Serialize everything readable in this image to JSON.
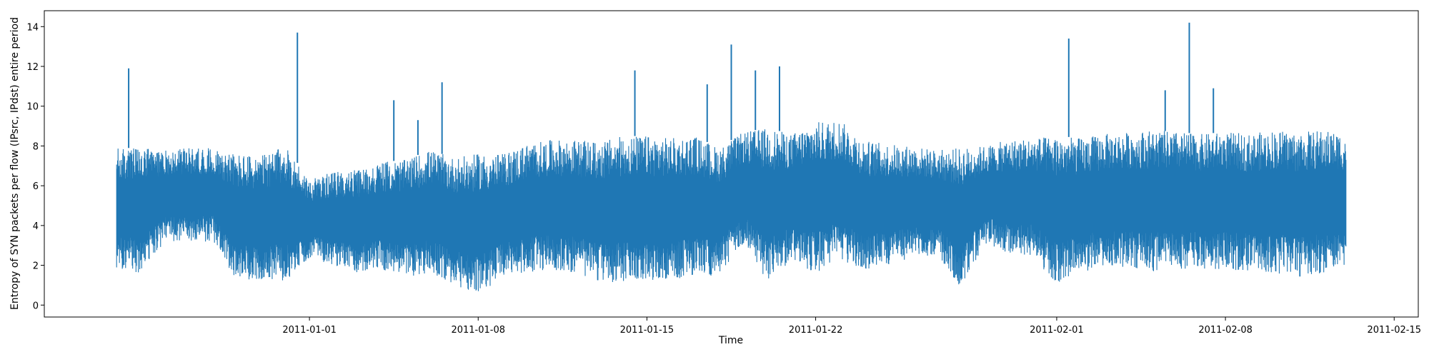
{
  "colors": {
    "series": "#1f77b4",
    "axes": "#000000",
    "background": "#ffffff"
  },
  "chart_data": {
    "type": "line",
    "title": "",
    "xlabel": "Time",
    "ylabel": "Entropy of SYN packets per flow (IPsrc, IPdst) entire period",
    "x_axis_type": "date",
    "xlim": [
      "2010-12-21",
      "2011-02-16"
    ],
    "ylim": [
      -0.6,
      14.8
    ],
    "grid": false,
    "legend": "none",
    "x_ticks": [
      "2011-01-01",
      "2011-01-08",
      "2011-01-15",
      "2011-01-22",
      "2011-02-01",
      "2011-02-08",
      "2011-02-15"
    ],
    "y_ticks": [
      0,
      2,
      4,
      6,
      8,
      10,
      12,
      14
    ],
    "x_tick_labels": [
      "2011-01-01",
      "2011-01-08",
      "2011-01-15",
      "2011-01-22",
      "2011-02-01",
      "2011-02-08",
      "2011-02-15"
    ],
    "y_tick_labels": [
      "0",
      "2",
      "4",
      "6",
      "8",
      "10",
      "12",
      "14"
    ],
    "data_start": "2010-12-24",
    "data_end": "2011-02-13",
    "series": [
      {
        "envelope": {
          "x": [
            "2010-12-24",
            "2010-12-25",
            "2010-12-26",
            "2010-12-27",
            "2010-12-28",
            "2010-12-29",
            "2010-12-30",
            "2010-12-31",
            "2011-01-01",
            "2011-01-02",
            "2011-01-03",
            "2011-01-04",
            "2011-01-05",
            "2011-01-06",
            "2011-01-07",
            "2011-01-08",
            "2011-01-09",
            "2011-01-10",
            "2011-01-11",
            "2011-01-12",
            "2011-01-13",
            "2011-01-14",
            "2011-01-15",
            "2011-01-16",
            "2011-01-17",
            "2011-01-18",
            "2011-01-19",
            "2011-01-20",
            "2011-01-21",
            "2011-01-22",
            "2011-01-23",
            "2011-01-24",
            "2011-01-25",
            "2011-01-26",
            "2011-01-27",
            "2011-01-28",
            "2011-01-29",
            "2011-01-30",
            "2011-01-31",
            "2011-02-01",
            "2011-02-02",
            "2011-02-03",
            "2011-02-04",
            "2011-02-05",
            "2011-02-06",
            "2011-02-07",
            "2011-02-08",
            "2011-02-09",
            "2011-02-10",
            "2011-02-11",
            "2011-02-12",
            "2011-02-13"
          ],
          "low": [
            1.8,
            1.6,
            3.2,
            3.1,
            3.2,
            1.2,
            1.3,
            1.2,
            2.4,
            2.0,
            1.6,
            1.8,
            1.4,
            1.6,
            1.0,
            0.5,
            1.4,
            1.6,
            1.8,
            1.6,
            1.2,
            1.1,
            1.2,
            1.3,
            1.4,
            1.5,
            3.0,
            1.2,
            2.2,
            1.6,
            2.2,
            1.7,
            2.0,
            2.4,
            2.5,
            0.9,
            3.0,
            2.6,
            2.4,
            1.1,
            1.6,
            2.0,
            1.9,
            1.7,
            1.8,
            1.8,
            1.8,
            1.7,
            1.6,
            1.4,
            1.6,
            2.0
          ],
          "high": [
            7.9,
            7.9,
            7.8,
            7.9,
            7.9,
            7.6,
            7.5,
            8.0,
            6.3,
            6.7,
            6.8,
            7.2,
            7.3,
            7.8,
            7.4,
            7.6,
            7.6,
            8.1,
            8.3,
            8.3,
            8.2,
            8.5,
            8.5,
            8.4,
            8.5,
            7.9,
            8.7,
            8.9,
            8.6,
            9.2,
            9.3,
            8.3,
            8.1,
            8.0,
            7.8,
            7.9,
            8.0,
            8.3,
            8.4,
            8.5,
            8.4,
            8.6,
            8.7,
            8.8,
            8.7,
            8.6,
            8.7,
            8.6,
            8.8,
            8.7,
            8.8,
            8.6
          ]
        },
        "spikes": [
          {
            "x": "2010-12-24",
            "y": 11.9
          },
          {
            "x": "2010-12-31",
            "y": 13.7
          },
          {
            "x": "2011-01-04",
            "y": 10.3
          },
          {
            "x": "2011-01-05",
            "y": 9.3
          },
          {
            "x": "2011-01-06",
            "y": 11.2
          },
          {
            "x": "2011-01-14",
            "y": 11.8
          },
          {
            "x": "2011-01-17",
            "y": 11.1
          },
          {
            "x": "2011-01-18",
            "y": 13.1
          },
          {
            "x": "2011-01-19",
            "y": 11.8
          },
          {
            "x": "2011-01-20",
            "y": 12.0
          },
          {
            "x": "2011-02-01",
            "y": 13.4
          },
          {
            "x": "2011-02-05",
            "y": 10.8
          },
          {
            "x": "2011-02-06",
            "y": 14.2
          },
          {
            "x": "2011-02-07",
            "y": 10.9
          }
        ]
      }
    ]
  }
}
